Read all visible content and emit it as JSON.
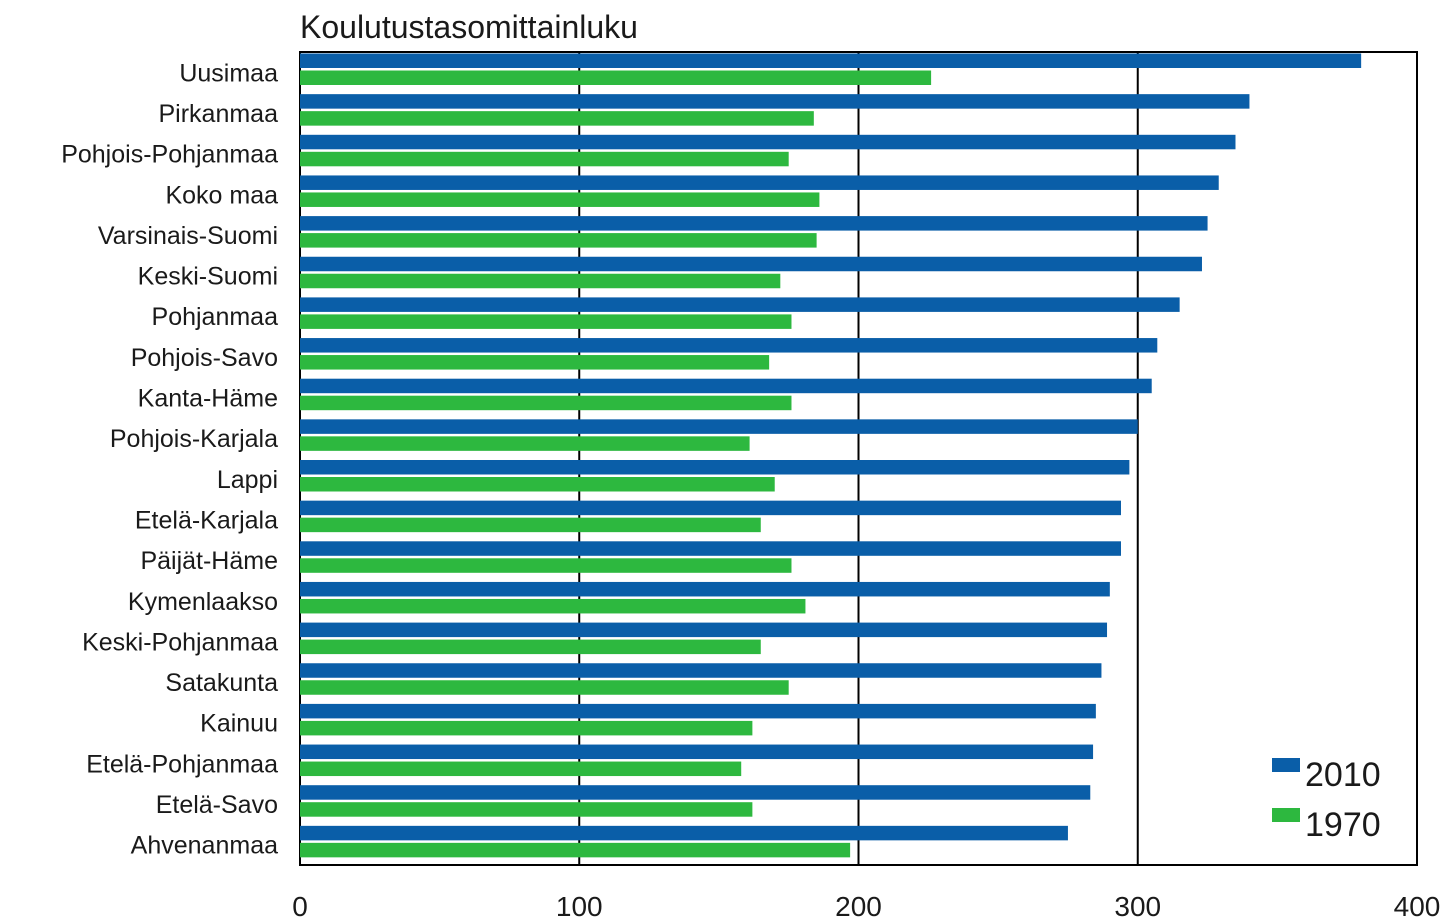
{
  "chart_data": {
    "type": "bar",
    "orientation": "horizontal",
    "title": "Koulutustasomittainluku",
    "xlabel": "",
    "ylabel": "",
    "xlim": [
      0,
      400
    ],
    "xticks": [
      0,
      100,
      200,
      300,
      400
    ],
    "grid": "vertical",
    "legend_position": "bottom-right",
    "categories": [
      "Uusimaa",
      "Pirkanmaa",
      "Pohjois-Pohjanmaa",
      "Koko maa",
      "Varsinais-Suomi",
      "Keski-Suomi",
      "Pohjanmaa",
      "Pohjois-Savo",
      "Kanta-Häme",
      "Pohjois-Karjala",
      "Lappi",
      "Etelä-Karjala",
      "Päijät-Häme",
      "Kymenlaakso",
      "Keski-Pohjanmaa",
      "Satakunta",
      "Kainuu",
      "Etelä-Pohjanmaa",
      "Etelä-Savo",
      "Ahvenanmaa"
    ],
    "series": [
      {
        "name": "2010",
        "color": "#0a5ea8",
        "values": [
          380,
          340,
          335,
          329,
          325,
          323,
          315,
          307,
          305,
          300,
          297,
          294,
          294,
          290,
          289,
          287,
          285,
          284,
          283,
          275
        ]
      },
      {
        "name": "1970",
        "color": "#2db83f",
        "values": [
          226,
          184,
          175,
          186,
          185,
          172,
          176,
          168,
          176,
          161,
          170,
          165,
          176,
          181,
          165,
          175,
          162,
          158,
          162,
          197
        ]
      }
    ]
  }
}
